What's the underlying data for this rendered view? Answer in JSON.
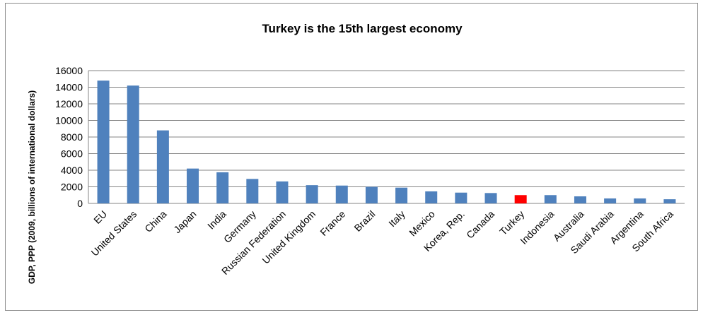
{
  "chart_data": {
    "type": "bar",
    "title": "Turkey is the 15th largest economy",
    "xlabel": "",
    "ylabel": "GDP, PPP (2009, billions of international dollars)",
    "ylim": [
      0,
      16000
    ],
    "yticks": [
      0,
      2000,
      4000,
      6000,
      8000,
      10000,
      12000,
      14000,
      16000
    ],
    "grid": true,
    "legend": "none",
    "categories": [
      "EU",
      "United States",
      "China",
      "Japan",
      "India",
      "Germany",
      "Russian Federation",
      "United Kingdom",
      "France",
      "Brazil",
      "Italy",
      "Mexico",
      "Korea, Rep.",
      "Canada",
      "Turkey",
      "Indonesia",
      "Australia",
      "Saudi Arabia",
      "Argentina",
      "South Africa"
    ],
    "values": [
      14800,
      14200,
      8800,
      4200,
      3750,
      2950,
      2650,
      2200,
      2150,
      2000,
      1900,
      1450,
      1300,
      1250,
      1000,
      1000,
      850,
      600,
      600,
      500
    ],
    "colors": {
      "default": "#4f81bd",
      "highlight": "#ff0000",
      "grid": "#868686",
      "axis": "#868686"
    },
    "highlight_category": "Turkey"
  }
}
